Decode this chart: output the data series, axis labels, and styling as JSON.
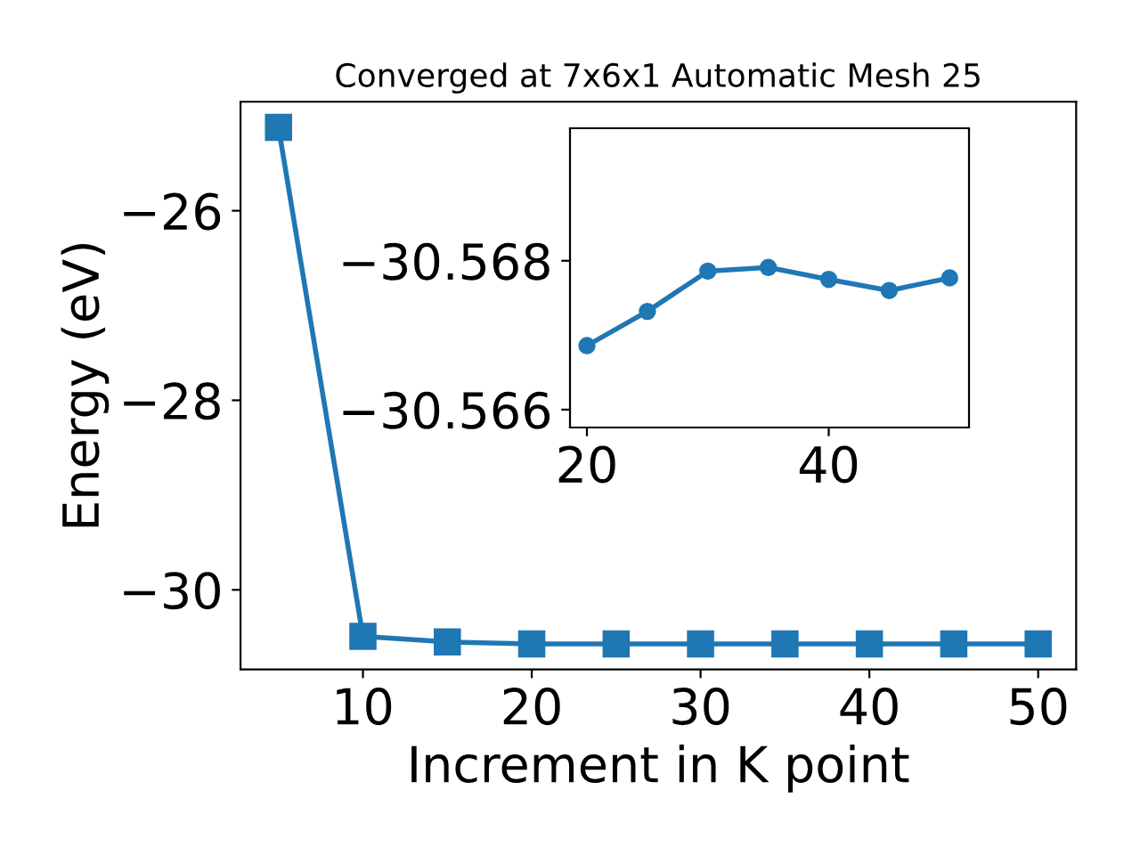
{
  "chart_data": [
    {
      "type": "line",
      "title": "Converged at 7x6x1 Automatic Mesh 25",
      "xlabel": "Increment in K point",
      "ylabel": "Energy (eV)",
      "x": [
        5,
        10,
        15,
        20,
        25,
        30,
        35,
        40,
        45,
        50
      ],
      "series": [
        {
          "color": "#1f77b4",
          "values": [
            -25.12,
            -30.49,
            -30.55,
            -30.57,
            -30.57,
            -30.57,
            -30.57,
            -30.57,
            -30.57,
            -30.57
          ]
        }
      ],
      "xlim": [
        2.75,
        52.25
      ],
      "ylim": [
        -30.84,
        -24.85
      ],
      "xticks": [
        10,
        20,
        30,
        40,
        50
      ],
      "yticks": [
        {
          "value": -30,
          "label": "−30"
        },
        {
          "value": -28,
          "label": "−28"
        },
        {
          "value": -26,
          "label": "−26"
        }
      ],
      "marker": "square",
      "line_style": "solid",
      "grid": false,
      "legend": false
    },
    {
      "type": "line",
      "x": [
        20,
        25,
        30,
        35,
        40,
        45,
        50
      ],
      "series": [
        {
          "color": "#1f77b4",
          "values": [
            -30.56686,
            -30.56732,
            -30.56786,
            -30.56791,
            -30.56775,
            -30.5676,
            -30.56777
          ]
        }
      ],
      "xlim": [
        18.6,
        51.6
      ],
      "ylim": [
        -30.56576,
        -30.56978
      ],
      "xticks": [
        20,
        40
      ],
      "yticks": [
        {
          "value": -30.566,
          "label": "−30.566"
        },
        {
          "value": -30.568,
          "label": "−30.568"
        }
      ],
      "marker": "circle",
      "line_style": "solid",
      "grid": false,
      "legend": false
    }
  ]
}
